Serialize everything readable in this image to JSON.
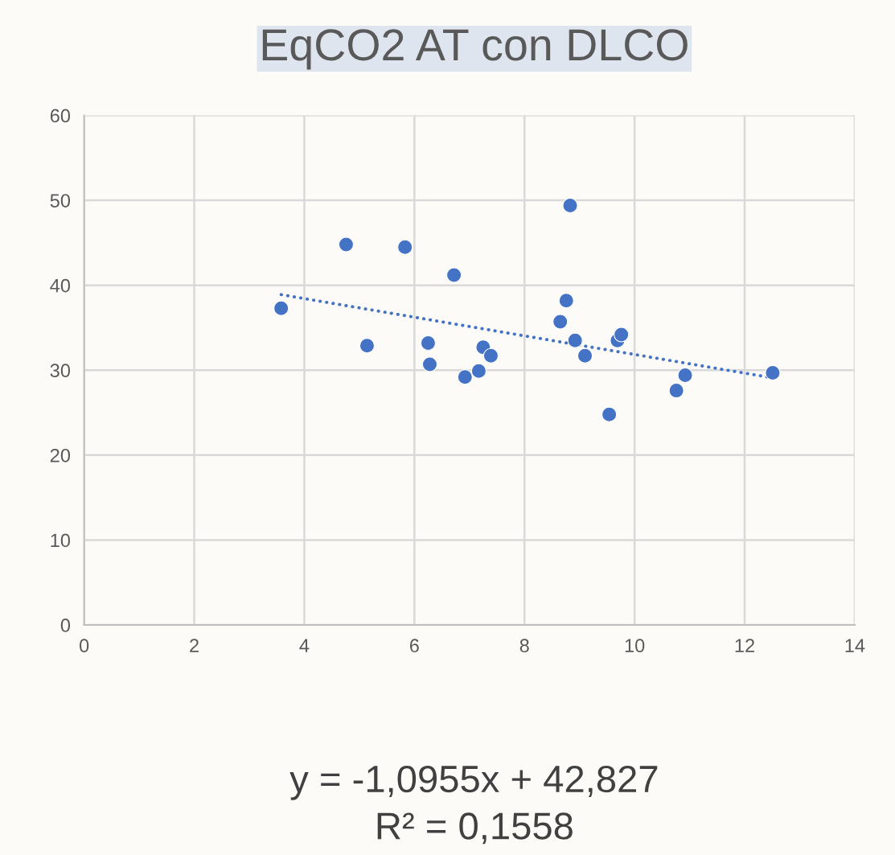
{
  "chart_data": {
    "type": "scatter",
    "title": "EqCO2 AT con DLCO",
    "xlim": [
      0,
      14
    ],
    "xticks": [
      0,
      2,
      4,
      6,
      8,
      10,
      12,
      14
    ],
    "ylim": [
      0,
      60
    ],
    "yticks": [
      0,
      10,
      20,
      30,
      40,
      50,
      60
    ],
    "grid": true,
    "marker": "circle",
    "legend": false,
    "series": [
      {
        "color": "#4472c4",
        "x": [
          3.58,
          4.76,
          5.14,
          5.83,
          6.25,
          6.28,
          6.72,
          6.92,
          7.17,
          7.25,
          7.39,
          8.65,
          8.76,
          8.83,
          8.92,
          9.1,
          9.54,
          9.69,
          9.76,
          10.76,
          10.92,
          12.51
        ],
        "values": [
          37.3,
          44.8,
          32.9,
          44.5,
          33.2,
          30.7,
          41.2,
          29.2,
          29.9,
          32.7,
          31.7,
          35.7,
          38.2,
          49.4,
          33.5,
          31.7,
          24.8,
          33.5,
          34.2,
          27.6,
          29.4,
          29.7
        ]
      },
      {
        "type": "line",
        "color": "#4472c4",
        "line_style": "dotted",
        "marker": "none",
        "x": [
          3.58,
          12.51
        ],
        "values": [
          38.9,
          29.1
        ]
      }
    ],
    "annotations": [
      "y = -1,0955x + 42,827",
      "R² = 0,1558"
    ]
  }
}
